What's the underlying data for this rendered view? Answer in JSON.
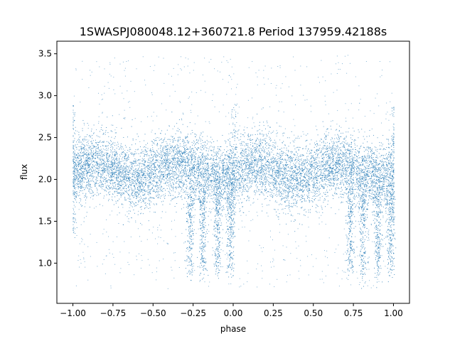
{
  "chart_data": {
    "type": "scatter",
    "title": "1SWASPJ080048.12+360721.8 Period 137959.42188s",
    "xlabel": "phase",
    "ylabel": "flux",
    "xlim": [
      -1.1,
      1.1
    ],
    "ylim": [
      0.52,
      3.65
    ],
    "x_ticks": [
      -1.0,
      -0.75,
      -0.5,
      -0.25,
      0.0,
      0.25,
      0.5,
      0.75,
      1.0
    ],
    "x_tick_labels": [
      "−1.00",
      "−0.75",
      "−0.50",
      "−0.25",
      "0.00",
      "0.25",
      "0.50",
      "0.75",
      "1.00"
    ],
    "y_ticks": [
      1.0,
      1.5,
      2.0,
      2.5,
      3.0,
      3.5
    ],
    "y_tick_labels": [
      "1.0",
      "1.5",
      "2.0",
      "2.5",
      "3.0",
      "3.5"
    ],
    "grid": false,
    "point_color": "#1f77b4",
    "x_data_range": [
      -1.0,
      1.0
    ],
    "main_band_center": 2.1,
    "main_band_half_width": 0.35,
    "outlier_range": [
      0.7,
      3.5
    ],
    "dip_phases": [
      -0.27,
      -0.19,
      -0.1,
      -0.02,
      0.73,
      0.81,
      0.9,
      0.98
    ],
    "dip_min_flux": 0.9
  }
}
